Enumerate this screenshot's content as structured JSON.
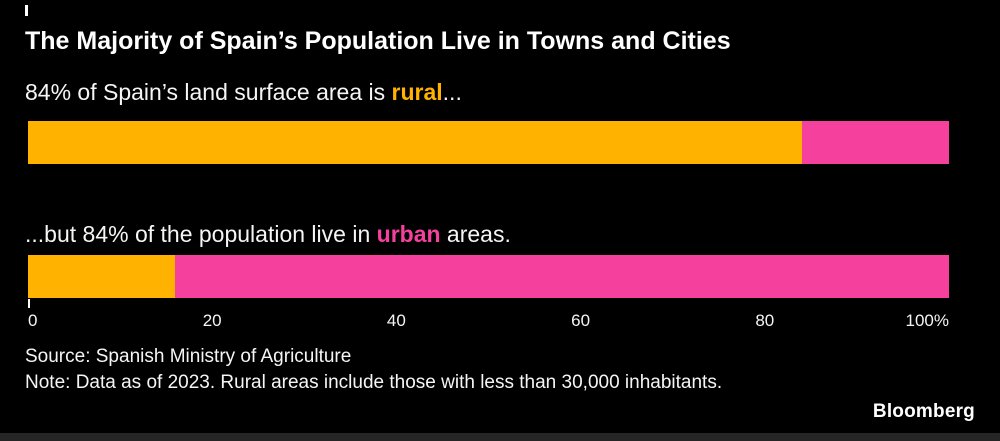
{
  "colors": {
    "background": "#000000",
    "rural": "#FFB300",
    "urban": "#F5409E",
    "text": "#FFFFFF",
    "strip": "#262626"
  },
  "header": {
    "title": "The Majority of Spain’s Population Live in Towns and Cities"
  },
  "labels": {
    "land": {
      "prefix": "84% of Spain’s land surface area is ",
      "highlight": "rural",
      "suffix": "...",
      "highlight_key": "rural"
    },
    "population": {
      "prefix": "...but 84% of the population live in ",
      "highlight": "urban",
      "suffix": " areas.",
      "highlight_key": "urban"
    }
  },
  "chart_data": {
    "type": "bar",
    "orientation": "horizontal",
    "stacked": true,
    "unit": "%",
    "bars": [
      {
        "id": "land",
        "segments": [
          {
            "name": "rural",
            "value": 84
          },
          {
            "name": "urban",
            "value": 16
          }
        ]
      },
      {
        "id": "population",
        "segments": [
          {
            "name": "rural",
            "value": 16
          },
          {
            "name": "urban",
            "value": 84
          }
        ]
      }
    ],
    "x_axis": {
      "range": [
        0,
        100
      ],
      "ticks": [
        {
          "label": "0",
          "value": 0,
          "align": "left"
        },
        {
          "label": "20",
          "value": 20,
          "align": "center"
        },
        {
          "label": "40",
          "value": 40,
          "align": "center"
        },
        {
          "label": "60",
          "value": 60,
          "align": "center"
        },
        {
          "label": "80",
          "value": 80,
          "align": "center"
        },
        {
          "label": "100%",
          "value": 100,
          "align": "right"
        }
      ]
    }
  },
  "footer": {
    "source": "Source: Spanish Ministry of Agriculture",
    "note": "Note: Data as of 2023. Rural areas include those with less than 30,000 inhabitants.",
    "brand": "Bloomberg"
  }
}
